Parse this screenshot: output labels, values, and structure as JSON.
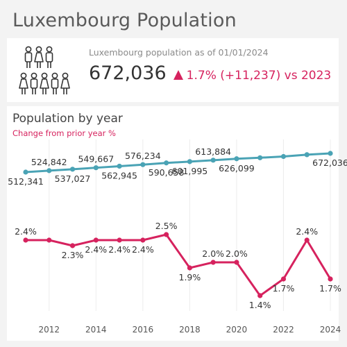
{
  "page": {
    "title": "Luxembourg Population"
  },
  "kpi": {
    "caption": "Luxembourg population as of 01/01/2024",
    "value": "672,036",
    "change": "1.7% (+11,237) vs 2023",
    "icon": "people-group-icon",
    "accent_color": "#d6225e"
  },
  "chart_section": {
    "title": "Population by year",
    "subtitle": "Change from prior year %"
  },
  "chart_data": [
    {
      "type": "line",
      "title": "",
      "color": "#4aa3b5",
      "x": [
        2011,
        2012,
        2013,
        2014,
        2015,
        2016,
        2017,
        2018,
        2019,
        2020,
        2021,
        2022,
        2023,
        2024
      ],
      "values": [
        512341,
        524842,
        537027,
        549667,
        562945,
        576234,
        590658,
        601995,
        613884,
        626099,
        634730,
        645397,
        660799,
        672036
      ],
      "labels": [
        "512,341",
        "524,842",
        "537,027",
        "549,667",
        "562,945",
        "576,234",
        "590,658",
        "601,995",
        "613,884",
        "626,099",
        "",
        "",
        "",
        "672,036"
      ],
      "ylim": [
        300000,
        700000
      ]
    },
    {
      "type": "line",
      "title": "",
      "color": "#d6225e",
      "x": [
        2011,
        2012,
        2013,
        2014,
        2015,
        2016,
        2017,
        2018,
        2019,
        2020,
        2021,
        2022,
        2023,
        2024
      ],
      "values": [
        2.4,
        2.4,
        2.3,
        2.4,
        2.4,
        2.4,
        2.5,
        1.9,
        2.0,
        2.0,
        1.4,
        1.7,
        2.4,
        1.7
      ],
      "labels": [
        "2.4%",
        "",
        "2.3%",
        "2.4%",
        "2.4%",
        "2.4%",
        "2.5%",
        "1.9%",
        "2.0%",
        "2.0%",
        "1.4%",
        "1.7%",
        "2.4%",
        "1.7%"
      ],
      "ylim": [
        0.5,
        3.5
      ]
    }
  ],
  "x_axis": {
    "ticks": [
      "2012",
      "2014",
      "2016",
      "2018",
      "2020",
      "2022",
      "2024"
    ],
    "tick_values": [
      2012,
      2014,
      2016,
      2018,
      2020,
      2022,
      2024
    ],
    "range": [
      2010.4,
      2024.6
    ],
    "grid": true
  }
}
